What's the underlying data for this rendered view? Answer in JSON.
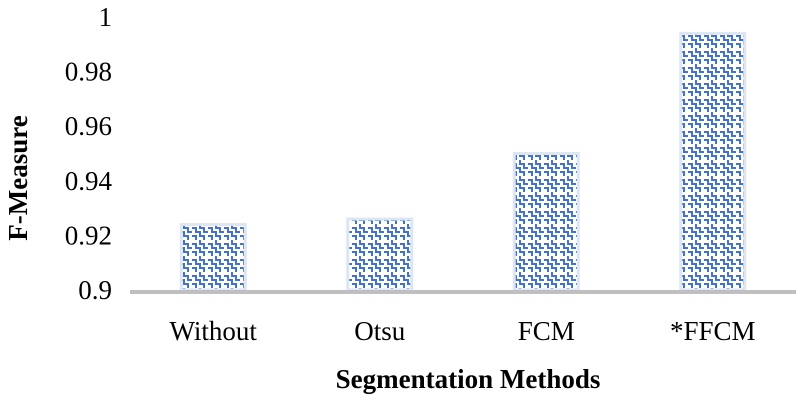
{
  "chart_data": {
    "type": "bar",
    "categories": [
      "Without",
      "Otsu",
      "FCM",
      "*FFCM"
    ],
    "values": [
      0.924,
      0.926,
      0.95,
      0.994
    ],
    "xlabel": "Segmentation Methods",
    "ylabel": "F-Measure",
    "ylim": [
      0.9,
      1.0
    ],
    "yticks": [
      "0.9",
      "0.92",
      "0.94",
      "0.96",
      "0.98",
      "1"
    ],
    "grid": false,
    "legend": "none",
    "bar_color": "#4472C4",
    "bar_fill_color": "#DCE6F5",
    "axis_color": "#BFBFBF"
  }
}
